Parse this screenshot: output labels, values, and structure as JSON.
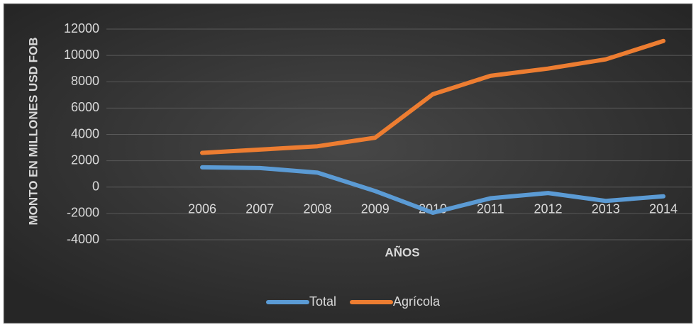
{
  "chart_data": {
    "type": "line",
    "x_label": "AÑOS",
    "y_label": "MONTO EN MILLONES USD FOB",
    "categories": [
      "2006",
      "2007",
      "2008",
      "2009",
      "2010",
      "2011",
      "2012",
      "2013",
      "2014"
    ],
    "series": [
      {
        "name": "Total",
        "color": "#5b9bd5",
        "values": [
          1500,
          1450,
          1100,
          -300,
          -1950,
          -850,
          -450,
          -1050,
          -700
        ]
      },
      {
        "name": "Agrícola",
        "color": "#ed7d31",
        "values": [
          2600,
          2850,
          3100,
          3750,
          7050,
          8450,
          9000,
          9700,
          11100
        ]
      }
    ],
    "ylim": [
      -4000,
      12000
    ],
    "yticks": [
      -4000,
      -2000,
      0,
      2000,
      4000,
      6000,
      8000,
      10000,
      12000
    ],
    "grid": true,
    "legend": "bottom"
  }
}
